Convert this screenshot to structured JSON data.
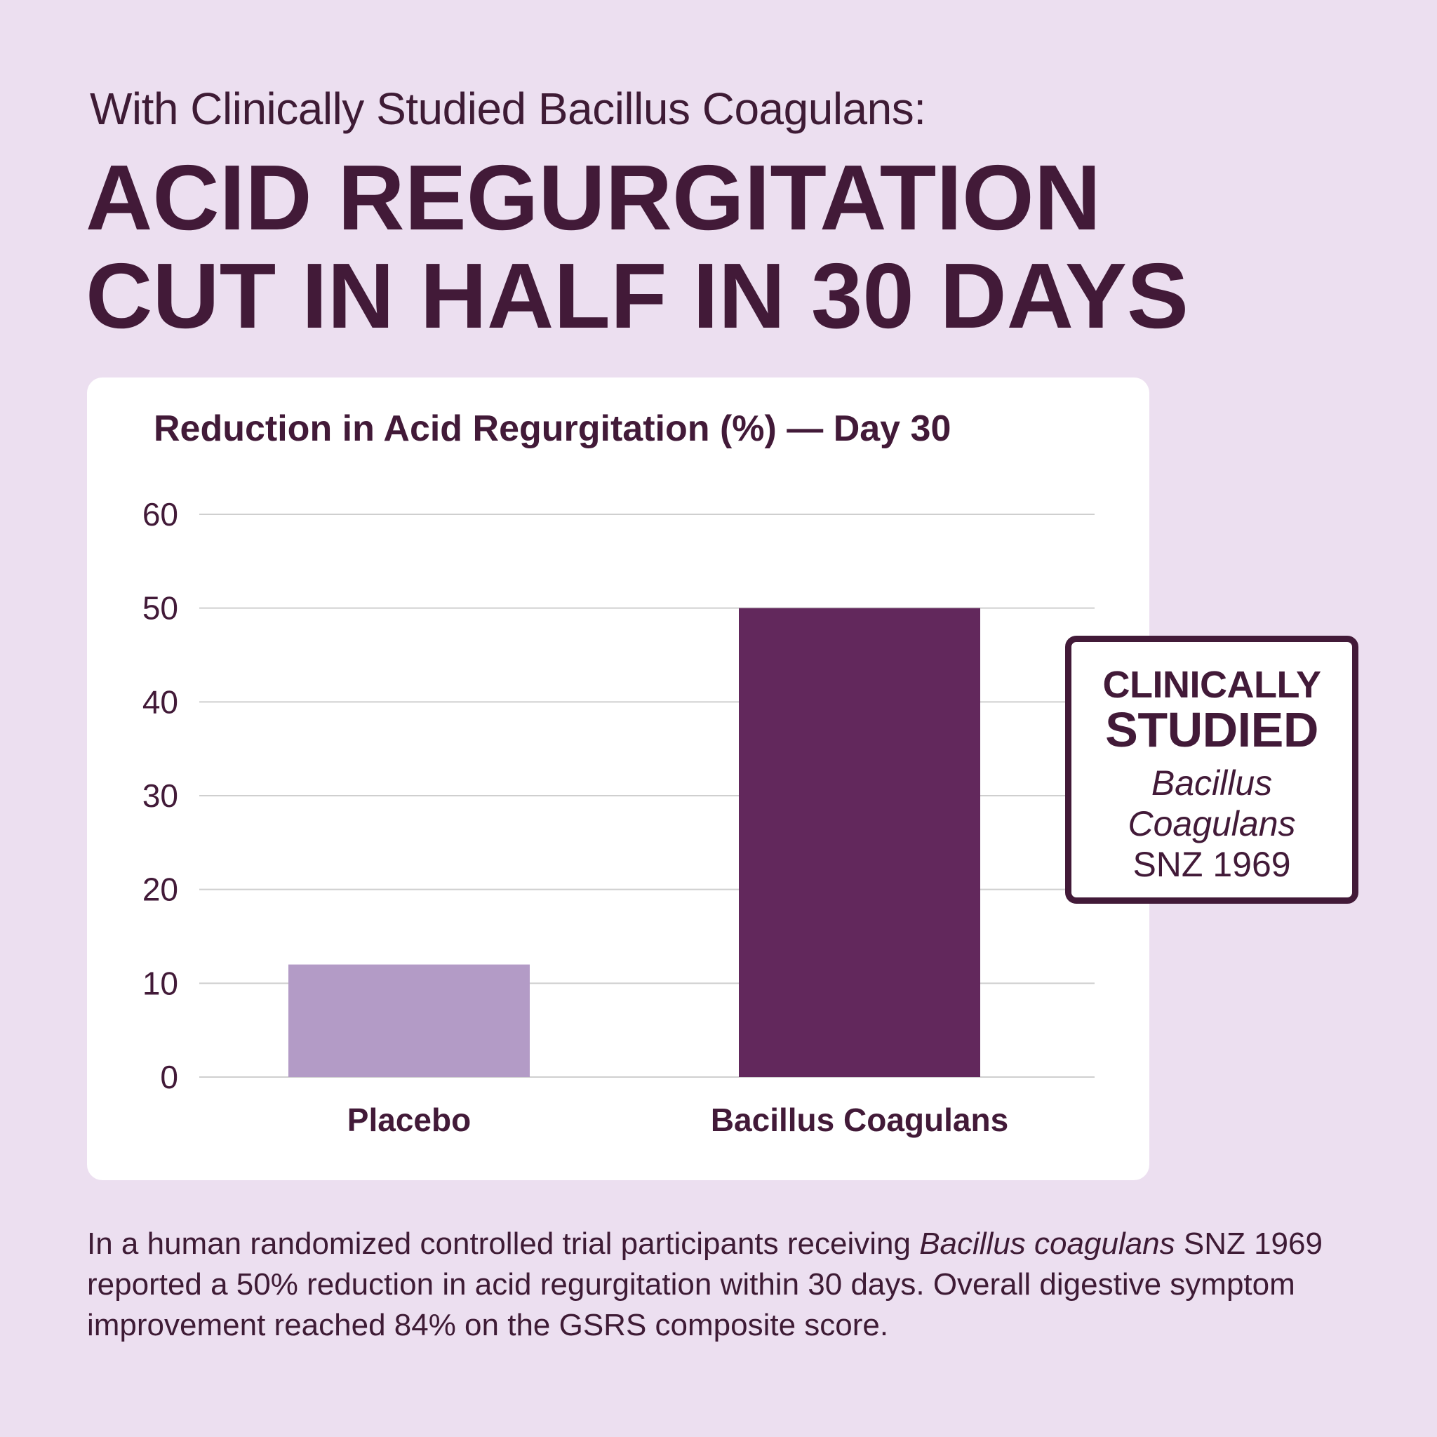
{
  "header": {
    "eyebrow": "With Clinically Studied Bacillus Coagulans:",
    "headline_line1": "ACID REGURGITATION",
    "headline_line2": "CUT IN HALF IN 30 DAYS"
  },
  "chart_data": {
    "type": "bar",
    "title": "Reduction in Acid Regurgitation (%) — Day 30",
    "categories": [
      "Placebo",
      "Bacillus Coagulans"
    ],
    "values": [
      12,
      50
    ],
    "ylim": [
      0,
      60
    ],
    "yticks": [
      "0",
      "10",
      "20",
      "30",
      "40",
      "50",
      "60"
    ],
    "xlabel": "",
    "ylabel": "",
    "grid": true,
    "colors": [
      "#b39bc6",
      "#62285c"
    ],
    "gridline_color": "#cfcfcf",
    "legend": "none"
  },
  "badge": {
    "line1": "CLINICALLY",
    "line2": "STUDIED",
    "line3": "Bacillus",
    "line4": "Coagulans",
    "line5": "SNZ 1969"
  },
  "caption": {
    "part1": "In a human randomized controlled trial participants receiving ",
    "italic": "Bacillus coagulans",
    "part2": " SNZ 1969 reported a 50% reduction in acid regurgitation within 30 days. Overall digestive symptom improvement reached 84% on the GSRS composite score."
  }
}
